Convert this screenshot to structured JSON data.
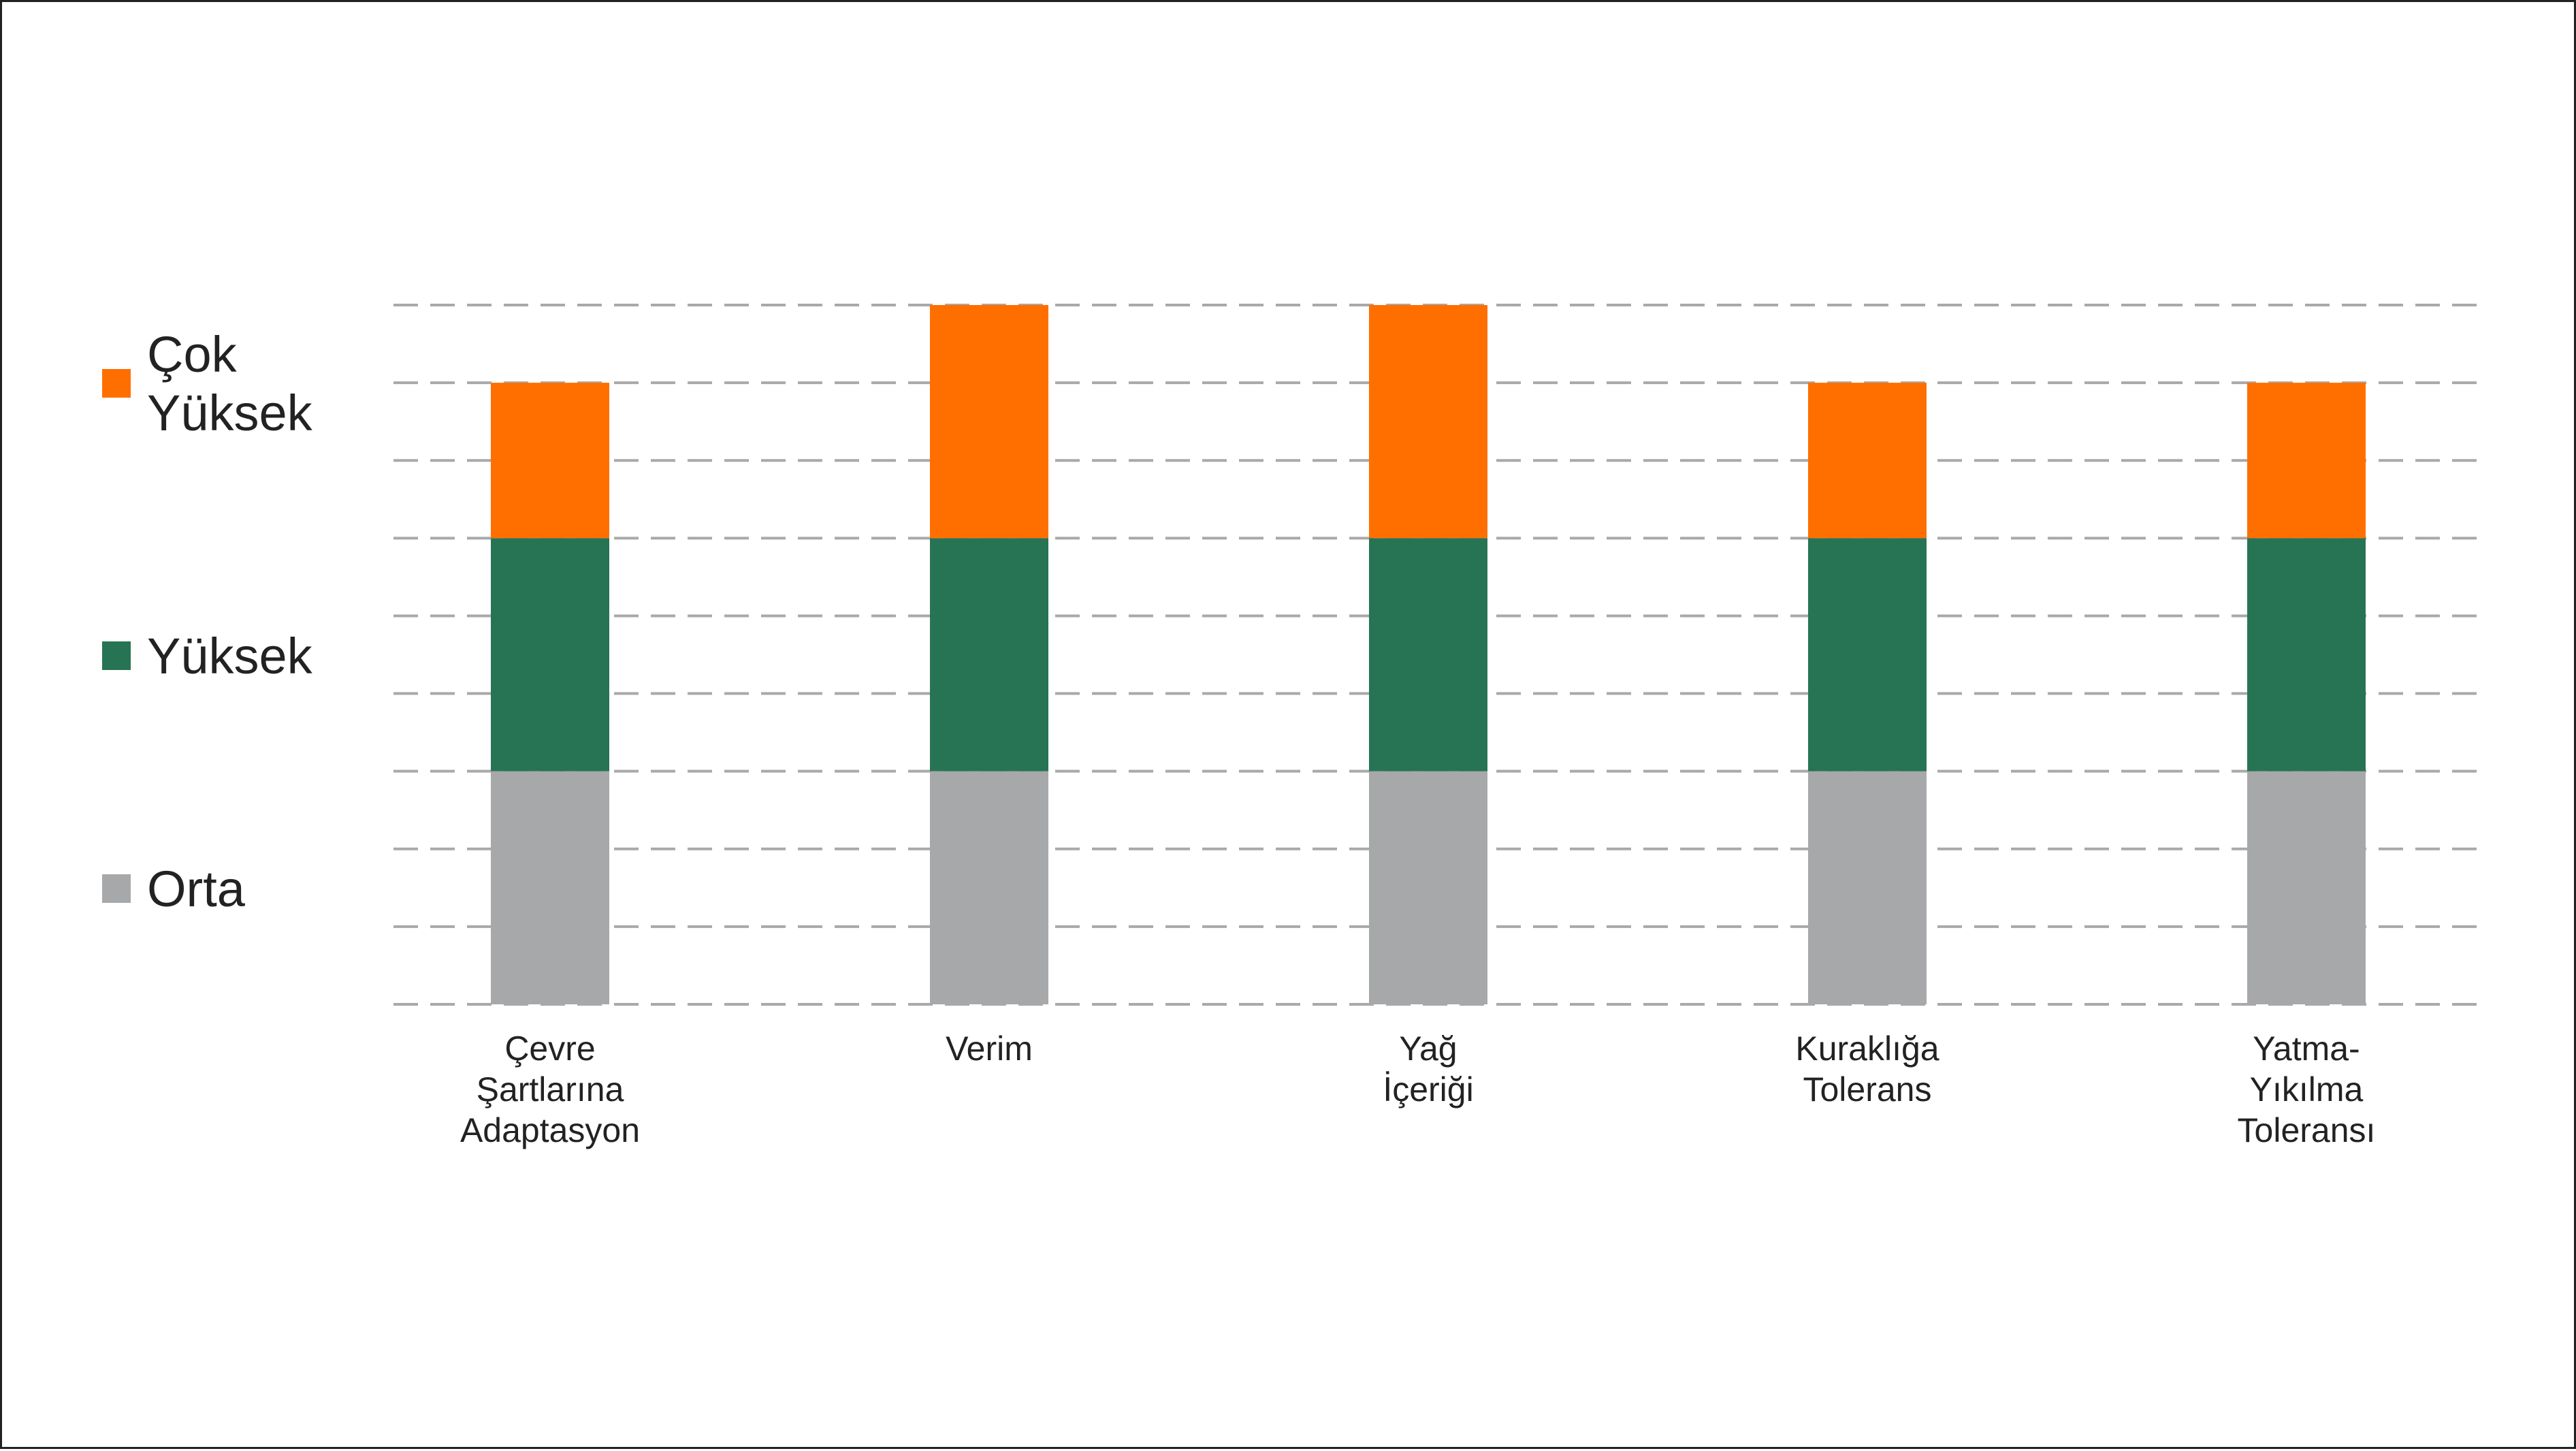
{
  "chart_data": {
    "type": "bar",
    "stacked": true,
    "categories": [
      [
        "Çevre",
        "Şartlarına",
        "Adaptasyon"
      ],
      [
        "Verim"
      ],
      [
        "Yağ",
        "İçeriği"
      ],
      [
        "Kuraklığa",
        "Tolerans"
      ],
      [
        "Yatma-",
        "Yıkılma",
        "Toleransı"
      ]
    ],
    "series": [
      {
        "name": "Orta",
        "color": "#a7a8aa",
        "values": [
          3,
          3,
          3,
          3,
          3
        ]
      },
      {
        "name": "Yüksek",
        "color": "#277455",
        "values": [
          3,
          3,
          3,
          3,
          3
        ]
      },
      {
        "name": "Çok Yüksek",
        "color": "#ff6f00",
        "values": [
          2,
          3,
          3,
          2,
          2
        ]
      }
    ],
    "legend": {
      "placement": "left",
      "order": [
        2,
        1,
        0
      ],
      "lines": [
        [
          "Çok",
          "Yüksek"
        ],
        [
          "Yüksek"
        ],
        [
          "Orta"
        ]
      ]
    },
    "ylim": [
      0,
      9
    ],
    "grid": true,
    "title": "",
    "xlabel": "",
    "ylabel": ""
  }
}
